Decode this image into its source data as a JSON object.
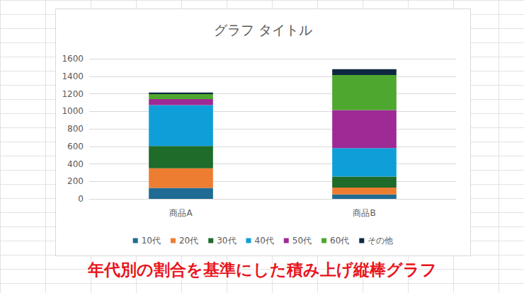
{
  "chart_data": {
    "type": "bar",
    "title": "グラフ タイトル",
    "categories": [
      "商品A",
      "商品B"
    ],
    "series": [
      {
        "name": "10代",
        "color": "#1f6b94",
        "values": [
          125,
          50
        ]
      },
      {
        "name": "20代",
        "color": "#ed7d31",
        "values": [
          225,
          80
        ]
      },
      {
        "name": "30代",
        "color": "#1e6b2a",
        "values": [
          255,
          125
        ]
      },
      {
        "name": "40代",
        "color": "#0e9fd8",
        "values": [
          465,
          325
        ]
      },
      {
        "name": "50代",
        "color": "#9e2a96",
        "values": [
          70,
          435
        ]
      },
      {
        "name": "60代",
        "color": "#4ea72e",
        "values": [
          55,
          400
        ]
      },
      {
        "name": "その他",
        "color": "#0e2841",
        "values": [
          20,
          65
        ]
      }
    ],
    "stacked": true,
    "ylim": [
      0,
      1600
    ],
    "yticks": [
      0,
      200,
      400,
      600,
      800,
      1000,
      1200,
      1400,
      1600
    ],
    "grid": true,
    "legend": "bottom",
    "annotations": [
      "年代別の割合を基準にした積み上げ縦棒グラフ"
    ]
  }
}
